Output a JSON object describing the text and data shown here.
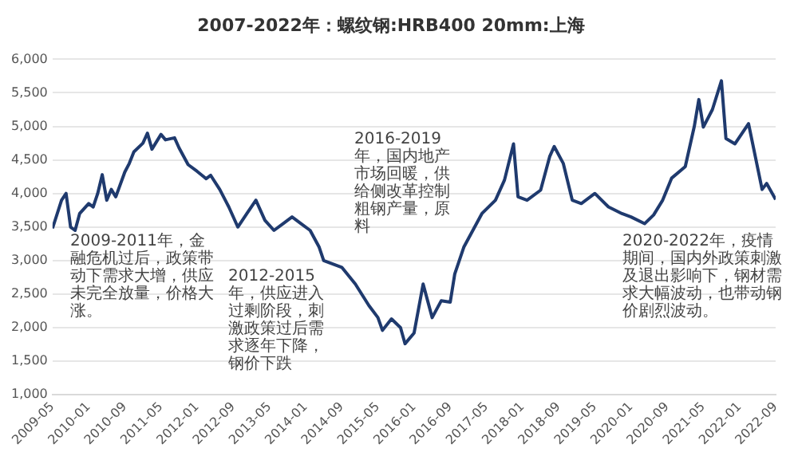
{
  "chart_data": {
    "type": "line",
    "title": "2007-2022年：螺纹钢:HRB400 20mm:上海",
    "xlim": [
      "2009-05",
      "2022-09"
    ],
    "xticks": [
      "2009-05",
      "2010-01",
      "2010-09",
      "2011-05",
      "2012-01",
      "2012-09",
      "2013-05",
      "2014-01",
      "2014-09",
      "2015-05",
      "2016-01",
      "2016-09",
      "2017-05",
      "2018-01",
      "2018-09",
      "2019-05",
      "2020-01",
      "2020-09",
      "2021-05",
      "2022-01",
      "2022-09"
    ],
    "ylim": [
      1000,
      6000
    ],
    "yticks": [
      {
        "value": 1000,
        "label": "1,000"
      },
      {
        "value": 1500,
        "label": "1,500"
      },
      {
        "value": 2000,
        "label": "2,000"
      },
      {
        "value": 2500,
        "label": "2,500"
      },
      {
        "value": 3000,
        "label": "3,000"
      },
      {
        "value": 3500,
        "label": "3,500"
      },
      {
        "value": 4000,
        "label": "4,000"
      },
      {
        "value": 4500,
        "label": "4,500"
      },
      {
        "value": 5000,
        "label": "5,000"
      },
      {
        "value": 5500,
        "label": "5,500"
      },
      {
        "value": 6000,
        "label": "6,000"
      }
    ],
    "grid": "y",
    "legend": false,
    "marker": "none",
    "line_style": "solid",
    "series": [
      {
        "color": "#1f3a6e",
        "x": [
          "2009-05",
          "2009-07",
          "2009-08",
          "2009-09",
          "2009-10",
          "2009-11",
          "2010-01",
          "2010-02",
          "2010-03",
          "2010-04",
          "2010-05",
          "2010-06",
          "2010-07",
          "2010-09",
          "2010-10",
          "2010-11",
          "2011-01",
          "2011-02",
          "2011-03",
          "2011-05",
          "2011-06",
          "2011-08",
          "2011-09",
          "2011-11",
          "2012-01",
          "2012-03",
          "2012-04",
          "2012-06",
          "2012-08",
          "2012-10",
          "2012-12",
          "2013-02",
          "2013-04",
          "2013-06",
          "2013-08",
          "2013-10",
          "2013-12",
          "2014-02",
          "2014-04",
          "2014-05",
          "2014-07",
          "2014-09",
          "2014-12",
          "2015-03",
          "2015-05",
          "2015-06",
          "2015-08",
          "2015-10",
          "2015-11",
          "2016-01",
          "2016-03",
          "2016-05",
          "2016-07",
          "2016-09",
          "2016-10",
          "2016-12",
          "2017-02",
          "2017-04",
          "2017-07",
          "2017-09",
          "2017-11",
          "2017-12",
          "2018-02",
          "2018-05",
          "2018-07",
          "2018-08",
          "2018-10",
          "2018-12",
          "2019-02",
          "2019-05",
          "2019-08",
          "2019-11",
          "2020-01",
          "2020-04",
          "2020-06",
          "2020-08",
          "2020-10",
          "2021-01",
          "2021-03",
          "2021-04",
          "2021-05",
          "2021-07",
          "2021-09",
          "2021-10",
          "2021-12",
          "2022-03",
          "2022-06",
          "2022-07",
          "2022-09"
        ],
        "values": [
          3480,
          3900,
          4000,
          3500,
          3450,
          3700,
          3850,
          3800,
          4000,
          4280,
          3900,
          4060,
          3950,
          4320,
          4450,
          4620,
          4750,
          4900,
          4660,
          4880,
          4800,
          4830,
          4680,
          4430,
          4330,
          4220,
          4270,
          4060,
          3800,
          3500,
          3700,
          3900,
          3600,
          3450,
          3550,
          3650,
          3550,
          3450,
          3200,
          3000,
          2950,
          2900,
          2650,
          2330,
          2150,
          1960,
          2130,
          2000,
          1760,
          1920,
          2650,
          2150,
          2400,
          2380,
          2800,
          3200,
          3450,
          3700,
          3900,
          4200,
          4740,
          3950,
          3900,
          4050,
          4550,
          4700,
          4450,
          3900,
          3850,
          4000,
          3800,
          3700,
          3650,
          3550,
          3680,
          3900,
          4230,
          4400,
          5000,
          5400,
          4990,
          5250,
          5680,
          4820,
          4740,
          5040,
          4060,
          4150,
          3910
        ]
      }
    ],
    "annotations": [
      "2009-2011年，金融危机过后，政策带动下需求大增，供应未完全放量，价格大涨。",
      "2012-2015年，供应进入过剩阶段，刺激政策过后需求逐年下降，钢价下跌",
      "2016-2019年，国内地产市场回暖，供给侧改革控制粗钢产量，原料",
      "2020-2022年，疫情期间，国内外政策刺激及退出影响下，钢材需求大幅波动，也带动钢价剧烈波动。"
    ]
  }
}
